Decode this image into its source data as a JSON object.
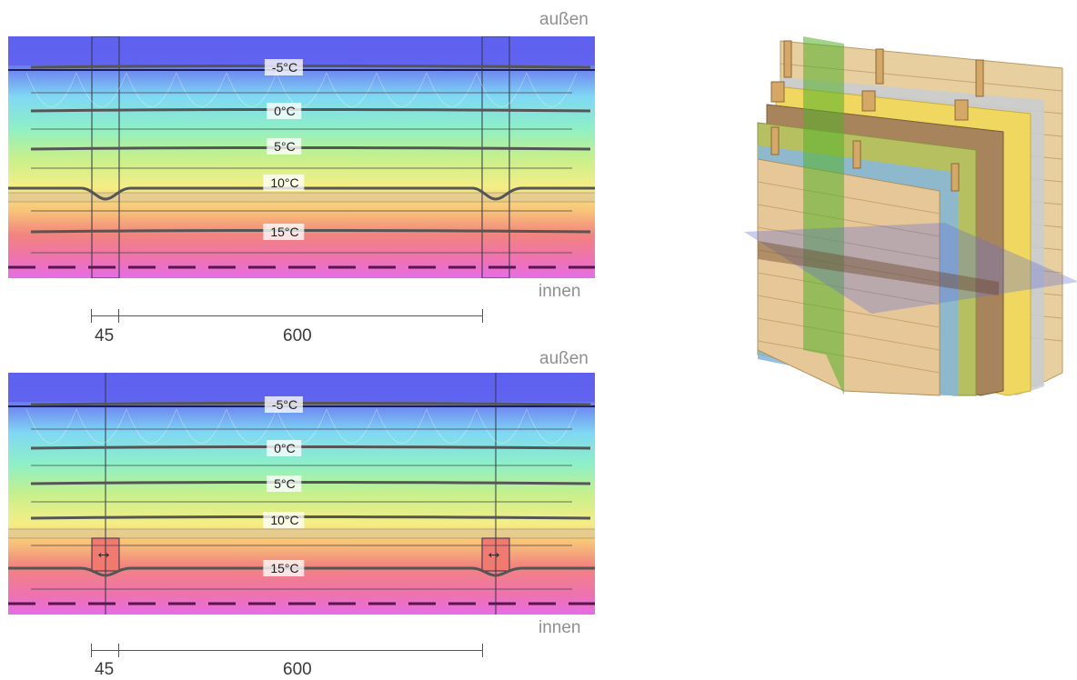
{
  "sides": {
    "outside": "außen",
    "inside": "innen"
  },
  "isotherms": [
    "-5°C",
    "0°C",
    "5°C",
    "10°C",
    "15°C"
  ],
  "dimensions": {
    "stud_width": "45",
    "stud_spacing": "600"
  },
  "detail_symbol": "↔",
  "colors": {
    "gradient": [
      "#5f60ee",
      "#6f8ef2",
      "#7fe6f4",
      "#8ef0b8",
      "#c8f090",
      "#f4f08a",
      "#f8c87a",
      "#f2807e",
      "#ee70b8",
      "#e86ee8"
    ],
    "isotherm_line": "#555555",
    "board": "#e0c894"
  }
}
